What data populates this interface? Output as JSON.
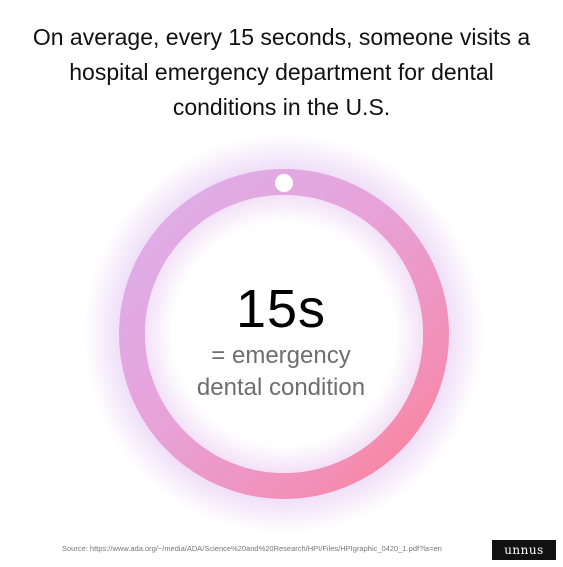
{
  "headline": "On average, every 15 seconds, someone visits a hospital emergency department for dental conditions in the U.S.",
  "stat": {
    "value": "15s",
    "caption_line1": "= emergency",
    "caption_line2": "dental condition"
  },
  "ring": {
    "progress_fraction": 1.0,
    "color_start": "#d9a3e6",
    "color_end": "#ff7f8f",
    "glow_color": "#c98ce6",
    "marker_color": "#ffffff"
  },
  "source": "Source: https://www.ada.org/~/media/ADA/Science%20and%20Research/HPI/Files/HPIgraphic_0420_1.pdf?la=en",
  "brand": "unnus"
}
